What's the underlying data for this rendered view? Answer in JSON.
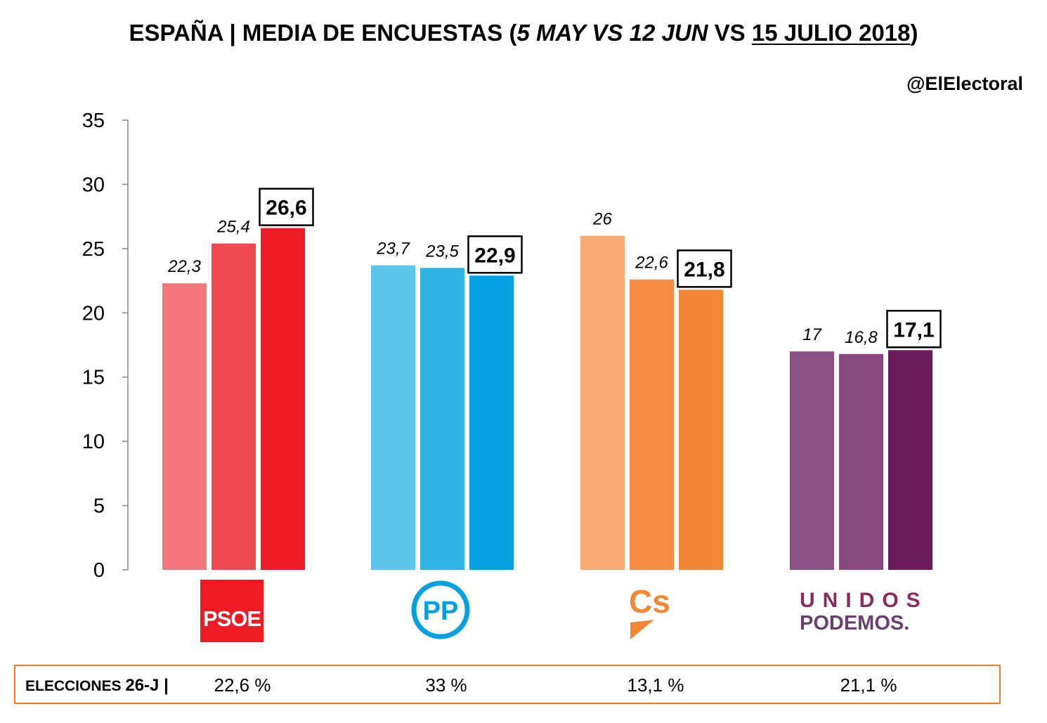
{
  "title": {
    "part1": "ESPAÑA | MEDIA DE ENCUESTAS (",
    "part2": "5 MAY VS 12 JUN",
    "part3": " VS ",
    "part4": "15 JULIO 2018",
    "part5": ")"
  },
  "handle": "@ElElectoral",
  "colors": {
    "psoe": [
      "#f4777b",
      "#ef4a52",
      "#ed1c24"
    ],
    "pp": [
      "#5bc5ec",
      "#30b4e6",
      "#05a0df"
    ],
    "cs": [
      "#f7ab74",
      "#f58d45",
      "#f28835"
    ],
    "podemos": [
      "#8c5183",
      "#8a497e",
      "#6a1b5a"
    ],
    "results_border": "#ed7d31"
  },
  "chart_data": {
    "type": "bar",
    "categories": [
      "PSOE",
      "PP",
      "Cs",
      "UNIDOS PODEMOS"
    ],
    "series": [
      {
        "name": "5 MAY",
        "values": [
          22.3,
          23.7,
          26,
          17
        ]
      },
      {
        "name": "12 JUN",
        "values": [
          25.4,
          23.5,
          22.6,
          16.8
        ]
      },
      {
        "name": "15 JULIO 2018",
        "values": [
          26.6,
          22.9,
          21.8,
          17.1
        ]
      }
    ],
    "value_labels": [
      [
        "22,3",
        "25,4",
        "26,6"
      ],
      [
        "23,7",
        "23,5",
        "22,9"
      ],
      [
        "26",
        "22,6",
        "21,8"
      ],
      [
        "17",
        "16,8",
        "17,1"
      ]
    ],
    "ylim": [
      0,
      35
    ],
    "yticks": [
      "0",
      "5",
      "10",
      "15",
      "20",
      "25",
      "30",
      "35"
    ],
    "grid": false
  },
  "logos": {
    "psoe": "PSOE",
    "pp": "PP",
    "cs": "Cs",
    "podemos_top": "UNIDOS",
    "podemos_bottom": "PODEMOS."
  },
  "results": {
    "label_prefix": "ELECCIONES ",
    "label_bold": "26-J |",
    "values": [
      "22,6 %",
      "33 %",
      "13,1 %",
      "21,1 %"
    ]
  }
}
